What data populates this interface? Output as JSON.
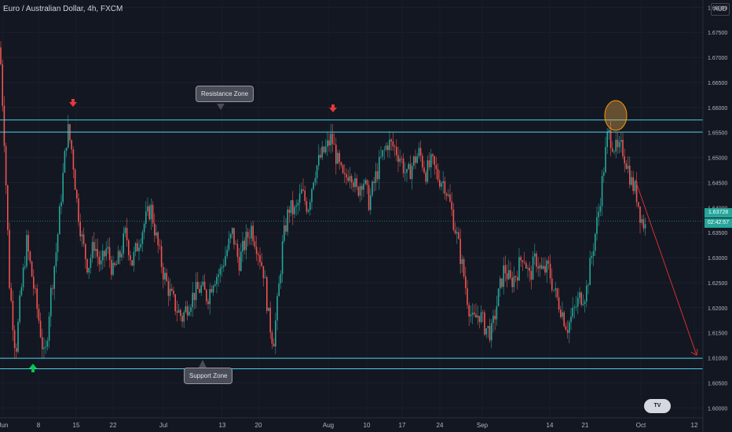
{
  "header": {
    "title": "Euro / Australian Dollar, 4h, FXCM",
    "currency": "AUD"
  },
  "annotations": {
    "resistance_label": "Resistance Zone",
    "support_label": "Support Zone",
    "current_price": "1.63728",
    "countdown": "02:42:57"
  },
  "colors": {
    "background": "#131722",
    "bull": "#26a69a",
    "bear": "#ef5350",
    "zone_line": "#4dd0e1",
    "arrow_red": "#e53935",
    "arrow_green": "#00c853"
  },
  "chart_data": {
    "type": "candlestick",
    "timeframe": "4h",
    "y_ticks": [
      "1.60000",
      "1.60500",
      "1.61000",
      "1.61500",
      "1.62000",
      "1.62500",
      "1.63000",
      "1.63500",
      "1.64000",
      "1.64500",
      "1.65000",
      "1.65500",
      "1.66000",
      "1.66500",
      "1.67000",
      "1.67500",
      "1.68000"
    ],
    "ylim": [
      1.598,
      1.681
    ],
    "x_ticks": [
      "Jun",
      "8",
      "15",
      "22",
      "Jul",
      "13",
      "20",
      "Aug",
      "10",
      "17",
      "24",
      "Sep",
      "14",
      "21",
      "Oct",
      "12"
    ],
    "resistance_zone": [
      1.6551,
      1.6575
    ],
    "support_zone": [
      1.6078,
      1.6099
    ],
    "current_price": 1.63728,
    "path": [
      [
        0,
        1.672
      ],
      [
        6,
        1.652
      ],
      [
        12,
        1.625
      ],
      [
        20,
        1.611
      ],
      [
        26,
        1.622
      ],
      [
        34,
        1.633
      ],
      [
        42,
        1.625
      ],
      [
        50,
        1.617
      ],
      [
        57,
        1.609
      ],
      [
        64,
        1.622
      ],
      [
        72,
        1.632
      ],
      [
        80,
        1.646
      ],
      [
        86,
        1.656
      ],
      [
        92,
        1.651
      ],
      [
        98,
        1.641
      ],
      [
        105,
        1.633
      ],
      [
        112,
        1.628
      ],
      [
        120,
        1.633
      ],
      [
        128,
        1.628
      ],
      [
        136,
        1.632
      ],
      [
        144,
        1.627
      ],
      [
        152,
        1.63
      ],
      [
        160,
        1.635
      ],
      [
        168,
        1.629
      ],
      [
        176,
        1.633
      ],
      [
        184,
        1.637
      ],
      [
        192,
        1.64
      ],
      [
        200,
        1.633
      ],
      [
        208,
        1.627
      ],
      [
        216,
        1.623
      ],
      [
        224,
        1.62
      ],
      [
        232,
        1.618
      ],
      [
        240,
        1.621
      ],
      [
        248,
        1.623
      ],
      [
        256,
        1.624
      ],
      [
        264,
        1.622
      ],
      [
        272,
        1.626
      ],
      [
        280,
        1.627
      ],
      [
        288,
        1.631
      ],
      [
        296,
        1.635
      ],
      [
        304,
        1.629
      ],
      [
        312,
        1.633
      ],
      [
        320,
        1.636
      ],
      [
        328,
        1.632
      ],
      [
        336,
        1.627
      ],
      [
        342,
        1.618
      ],
      [
        348,
        1.613
      ],
      [
        354,
        1.622
      ],
      [
        360,
        1.633
      ],
      [
        368,
        1.64
      ],
      [
        376,
        1.639
      ],
      [
        384,
        1.643
      ],
      [
        392,
        1.64
      ],
      [
        400,
        1.647
      ],
      [
        408,
        1.65
      ],
      [
        416,
        1.652
      ],
      [
        422,
        1.654
      ],
      [
        430,
        1.649
      ],
      [
        438,
        1.645
      ],
      [
        446,
        1.648
      ],
      [
        454,
        1.643
      ],
      [
        462,
        1.646
      ],
      [
        470,
        1.641
      ],
      [
        478,
        1.646
      ],
      [
        486,
        1.65
      ],
      [
        494,
        1.653
      ],
      [
        502,
        1.652
      ],
      [
        510,
        1.65
      ],
      [
        518,
        1.646
      ],
      [
        526,
        1.649
      ],
      [
        534,
        1.651
      ],
      [
        542,
        1.647
      ],
      [
        550,
        1.649
      ],
      [
        558,
        1.646
      ],
      [
        566,
        1.645
      ],
      [
        574,
        1.64
      ],
      [
        582,
        1.634
      ],
      [
        590,
        1.627
      ],
      [
        596,
        1.621
      ],
      [
        602,
        1.617
      ],
      [
        610,
        1.619
      ],
      [
        618,
        1.616
      ],
      [
        626,
        1.615
      ],
      [
        634,
        1.622
      ],
      [
        642,
        1.628
      ],
      [
        650,
        1.625
      ],
      [
        658,
        1.627
      ],
      [
        666,
        1.631
      ],
      [
        674,
        1.626
      ],
      [
        682,
        1.63
      ],
      [
        690,
        1.627
      ],
      [
        698,
        1.628
      ],
      [
        706,
        1.623
      ],
      [
        714,
        1.62
      ],
      [
        722,
        1.616
      ],
      [
        730,
        1.619
      ],
      [
        738,
        1.622
      ],
      [
        746,
        1.623
      ],
      [
        754,
        1.631
      ],
      [
        762,
        1.639
      ],
      [
        768,
        1.647
      ],
      [
        774,
        1.655
      ],
      [
        780,
        1.653
      ],
      [
        786,
        1.651
      ],
      [
        792,
        1.652
      ],
      [
        798,
        1.649
      ],
      [
        804,
        1.645
      ],
      [
        810,
        1.643
      ],
      [
        816,
        1.638
      ],
      [
        822,
        1.636
      ]
    ],
    "projection": {
      "from": [
        1.6455,
        "Sep 30"
      ],
      "to": [
        1.6105,
        "Oct 13"
      ]
    }
  }
}
